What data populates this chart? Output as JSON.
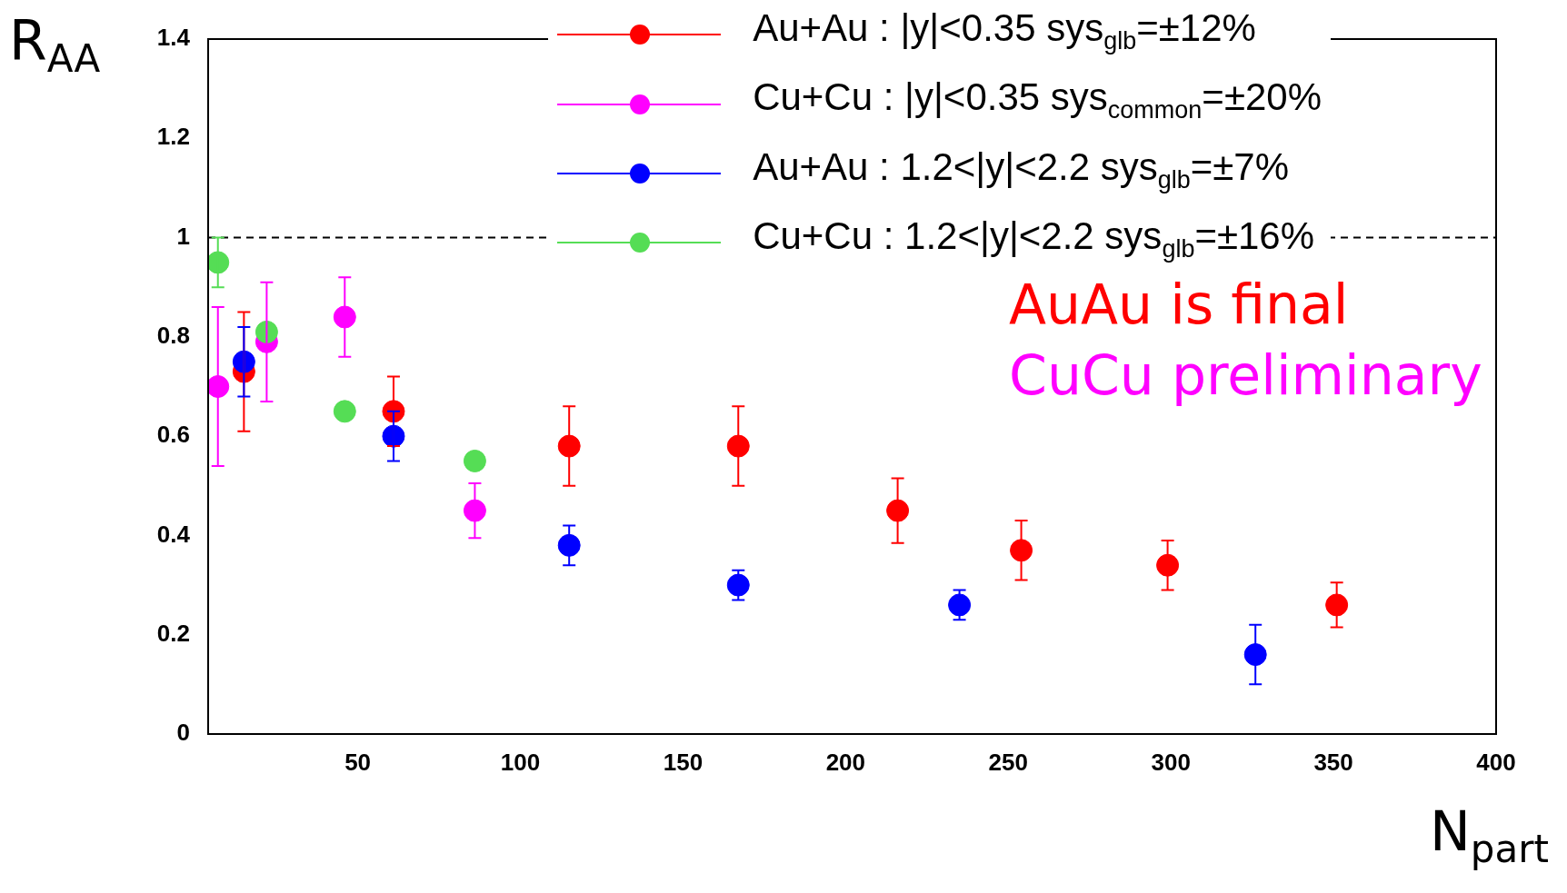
{
  "chart_data": {
    "type": "scatter",
    "xlabel": "N$_{part}$",
    "ylabel": "R$_{AA}$",
    "xlim": [
      4,
      400
    ],
    "xticks": [
      50,
      100,
      150,
      200,
      250,
      300,
      350,
      400
    ],
    "ylim": [
      0,
      1.4
    ],
    "yticks": [
      0,
      0.2,
      0.4,
      0.6,
      0.8,
      1,
      1.2,
      1.4
    ],
    "marker": "circle",
    "legend": "top right",
    "grid": false,
    "ref_lines": [
      {
        "axis": "y",
        "value": 1,
        "line_style": "dashed",
        "color": "#000000"
      }
    ],
    "annotations": [
      "AuAu is final",
      "CuCu preliminary"
    ],
    "series": [
      {
        "name": "Au+Au : |y|<0.35 sys$_{glb}$=±12%",
        "color": "#ff0000",
        "x": [
          15,
          61,
          115,
          167,
          216,
          254,
          299,
          351
        ],
        "values": [
          0.73,
          0.65,
          0.58,
          0.58,
          0.45,
          0.37,
          0.34,
          0.26
        ],
        "errors": [
          0.12,
          0.07,
          0.08,
          0.08,
          0.065,
          0.06,
          0.05,
          0.045
        ]
      },
      {
        "name": "Cu+Cu : |y|<0.35 sys$_{common}$=±20%",
        "color": "#ff00ff",
        "x": [
          7,
          22,
          46,
          86
        ],
        "values": [
          0.7,
          0.79,
          0.84,
          0.45
        ],
        "errors": [
          0.16,
          0.12,
          0.08,
          0.055
        ]
      },
      {
        "name": "Au+Au : 1.2<|y|<2.2 sys$_{glb}$=±7%",
        "color": "#0000ff",
        "x": [
          15,
          61,
          115,
          167,
          235,
          326
        ],
        "values": [
          0.75,
          0.6,
          0.38,
          0.3,
          0.26,
          0.16
        ],
        "errors": [
          0.07,
          0.05,
          0.04,
          0.03,
          0.03,
          0.06
        ]
      },
      {
        "name": "Cu+Cu : 1.2<|y|<2.2 sys$_{glb}$=±16%",
        "color": "#55dd55",
        "x": [
          7,
          22,
          46,
          86
        ],
        "values": [
          0.95,
          0.81,
          0.65,
          0.55
        ],
        "errors": [
          0.05,
          null,
          null,
          null
        ]
      }
    ]
  }
}
